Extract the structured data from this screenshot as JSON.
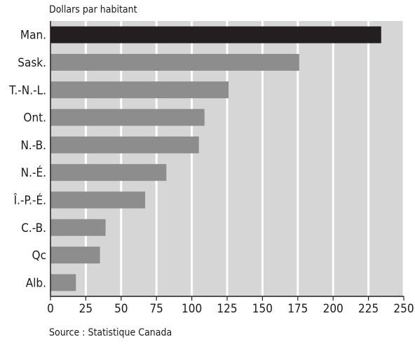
{
  "chart_data": {
    "type": "bar",
    "orientation": "horizontal",
    "unit_label": "Dollars par habitant",
    "categories": [
      "Man.",
      "Sask.",
      "T.-N.-L.",
      "Ont.",
      "N.-B.",
      "N.-É.",
      "Î.-P.-É.",
      "C.-B.",
      "Qc",
      "Alb."
    ],
    "values": [
      234,
      176,
      126,
      109,
      105,
      82,
      67,
      39,
      35,
      18
    ],
    "highlight_index": 0,
    "xlim": [
      0,
      250
    ],
    "xticks": [
      0,
      25,
      50,
      75,
      100,
      125,
      150,
      175,
      200,
      225,
      250
    ],
    "grid": true,
    "source": "Source : Statistique Canada",
    "colors": {
      "bar": "#8d8d8d",
      "highlight": "#231f20",
      "band_light": "#d6d6d6",
      "grid_line": "#ffffff",
      "text": "#1a1a1a"
    }
  }
}
